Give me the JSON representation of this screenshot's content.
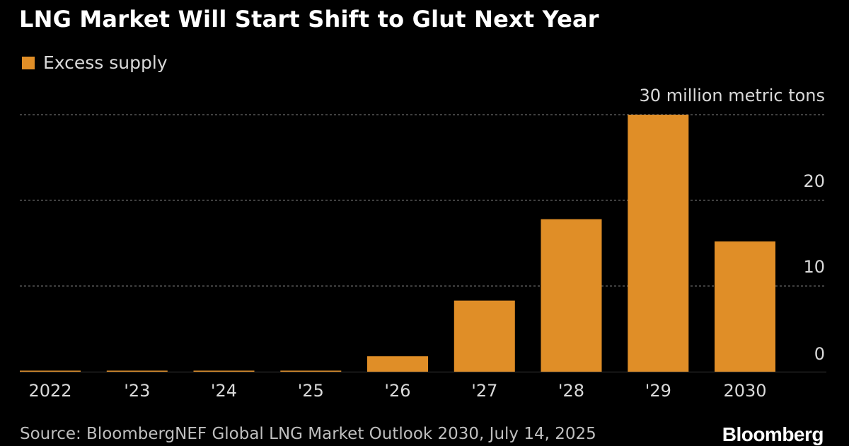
{
  "colors": {
    "background": "#000000",
    "bar": "#e08e27",
    "grid": "#666666",
    "axis_text": "#d9d9d9"
  },
  "chart_data": {
    "type": "bar",
    "title": "LNG Market Will Start Shift to Glut Next Year",
    "legend": [
      "Excess supply"
    ],
    "categories": [
      "2022",
      "'23",
      "'24",
      "'25",
      "'26",
      "'27",
      "'28",
      "'29",
      "2030"
    ],
    "series": [
      {
        "name": "Excess supply",
        "values": [
          0.1,
          0.1,
          0.1,
          0.1,
          1.8,
          8.3,
          17.8,
          30.0,
          15.2
        ]
      }
    ],
    "ylim": [
      0,
      30
    ],
    "yticks": [
      0,
      10,
      20,
      30
    ],
    "ytick_labels": [
      "0",
      "10",
      "20",
      "30 million metric tons"
    ],
    "ylabel": "",
    "xlabel": "",
    "grid": true,
    "y_axis_position": "right"
  },
  "footer": {
    "source": "Source: BloombergNEF Global LNG Market Outlook 2030, July 14, 2025",
    "brand": "Bloomberg"
  }
}
